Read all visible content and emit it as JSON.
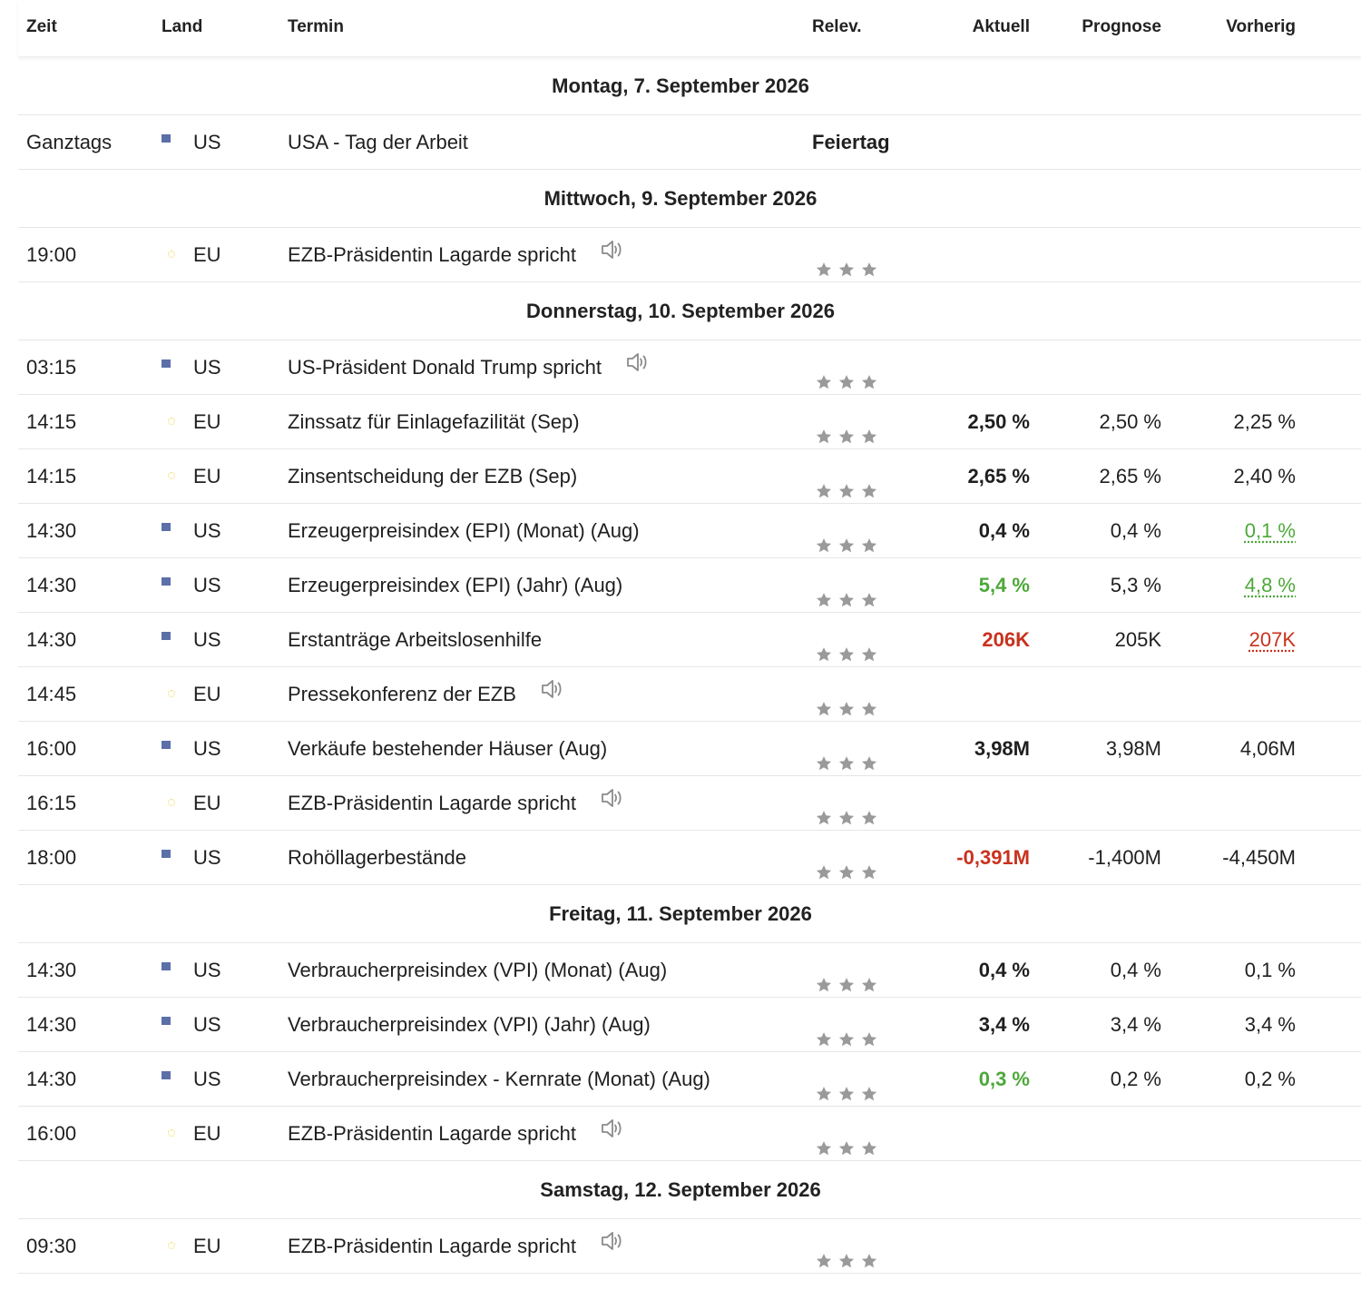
{
  "header": {
    "time": "Zeit",
    "country": "Land",
    "event": "Termin",
    "relevance": "Relev.",
    "actual": "Aktuell",
    "forecast": "Prognose",
    "previous": "Vorherig"
  },
  "icons": {
    "flag_us": "us-flag-icon",
    "flag_eu": "eu-flag-icon",
    "star": "star-icon",
    "speaker": "speaker-icon"
  },
  "colors": {
    "positive": "#4da83a",
    "negative": "#c8321e",
    "star": "#9a9a9a"
  },
  "sections": [
    {
      "date": "Montag, 7. September 2026",
      "events": [
        {
          "time": "Ganztags",
          "flag": "us",
          "country": "US",
          "event": "USA - Tag der Arbeit",
          "holiday": "Feiertag",
          "stars": 0,
          "sound": false,
          "actual": "",
          "actual_tone": "",
          "forecast": "",
          "previous": "",
          "previous_tone": ""
        }
      ]
    },
    {
      "date": "Mittwoch, 9. September 2026",
      "events": [
        {
          "time": "19:00",
          "flag": "eu",
          "country": "EU",
          "event": "EZB-Präsidentin Lagarde spricht",
          "holiday": "",
          "stars": 3,
          "sound": true,
          "actual": "",
          "actual_tone": "",
          "forecast": "",
          "previous": "",
          "previous_tone": ""
        }
      ]
    },
    {
      "date": "Donnerstag, 10. September 2026",
      "events": [
        {
          "time": "03:15",
          "flag": "us",
          "country": "US",
          "event": "US-Präsident Donald Trump spricht",
          "holiday": "",
          "stars": 3,
          "sound": true,
          "actual": "",
          "actual_tone": "",
          "forecast": "",
          "previous": "",
          "previous_tone": ""
        },
        {
          "time": "14:15",
          "flag": "eu",
          "country": "EU",
          "event": "Zinssatz für Einlagefazilität  (Sep)",
          "holiday": "",
          "stars": 3,
          "sound": false,
          "actual": "2,50 %",
          "actual_tone": "",
          "forecast": "2,50 %",
          "previous": "2,25 %",
          "previous_tone": ""
        },
        {
          "time": "14:15",
          "flag": "eu",
          "country": "EU",
          "event": "Zinsentscheidung der EZB  (Sep)",
          "holiday": "",
          "stars": 3,
          "sound": false,
          "actual": "2,65 %",
          "actual_tone": "",
          "forecast": "2,65 %",
          "previous": "2,40 %",
          "previous_tone": ""
        },
        {
          "time": "14:30",
          "flag": "us",
          "country": "US",
          "event": "Erzeugerpreisindex (EPI) (Monat) (Aug)",
          "holiday": "",
          "stars": 3,
          "sound": false,
          "actual": "0,4 %",
          "actual_tone": "",
          "forecast": "0,4 %",
          "previous": "0,1 %",
          "previous_tone": "green"
        },
        {
          "time": "14:30",
          "flag": "us",
          "country": "US",
          "event": "Erzeugerpreisindex (EPI) (Jahr) (Aug)",
          "holiday": "",
          "stars": 3,
          "sound": false,
          "actual": "5,4 %",
          "actual_tone": "green",
          "forecast": "5,3 %",
          "previous": "4,8 %",
          "previous_tone": "green"
        },
        {
          "time": "14:30",
          "flag": "us",
          "country": "US",
          "event": "Erstanträge Arbeitslosenhilfe",
          "holiday": "",
          "stars": 3,
          "sound": false,
          "actual": "206K",
          "actual_tone": "red",
          "forecast": "205K",
          "previous": "207K",
          "previous_tone": "red"
        },
        {
          "time": "14:45",
          "flag": "eu",
          "country": "EU",
          "event": "Pressekonferenz der EZB",
          "holiday": "",
          "stars": 3,
          "sound": true,
          "actual": "",
          "actual_tone": "",
          "forecast": "",
          "previous": "",
          "previous_tone": ""
        },
        {
          "time": "16:00",
          "flag": "us",
          "country": "US",
          "event": "Verkäufe bestehender Häuser  (Aug)",
          "holiday": "",
          "stars": 3,
          "sound": false,
          "actual": "3,98M",
          "actual_tone": "",
          "forecast": "3,98M",
          "previous": "4,06M",
          "previous_tone": ""
        },
        {
          "time": "16:15",
          "flag": "eu",
          "country": "EU",
          "event": "EZB-Präsidentin Lagarde spricht",
          "holiday": "",
          "stars": 3,
          "sound": true,
          "actual": "",
          "actual_tone": "",
          "forecast": "",
          "previous": "",
          "previous_tone": ""
        },
        {
          "time": "18:00",
          "flag": "us",
          "country": "US",
          "event": "Rohöllagerbestände",
          "holiday": "",
          "stars": 3,
          "sound": false,
          "actual": "-0,391M",
          "actual_tone": "red",
          "forecast": "-1,400M",
          "previous": "-4,450M",
          "previous_tone": ""
        }
      ]
    },
    {
      "date": "Freitag, 11. September 2026",
      "events": [
        {
          "time": "14:30",
          "flag": "us",
          "country": "US",
          "event": "Verbraucherpreisindex (VPI) (Monat) (Aug)",
          "holiday": "",
          "stars": 3,
          "sound": false,
          "actual": "0,4 %",
          "actual_tone": "",
          "forecast": "0,4 %",
          "previous": "0,1 %",
          "previous_tone": ""
        },
        {
          "time": "14:30",
          "flag": "us",
          "country": "US",
          "event": "Verbraucherpreisindex (VPI) (Jahr) (Aug)",
          "holiday": "",
          "stars": 3,
          "sound": false,
          "actual": "3,4 %",
          "actual_tone": "",
          "forecast": "3,4 %",
          "previous": "3,4 %",
          "previous_tone": ""
        },
        {
          "time": "14:30",
          "flag": "us",
          "country": "US",
          "event": "Verbraucherpreisindex - Kernrate (Monat) (Aug)",
          "holiday": "",
          "stars": 3,
          "sound": false,
          "actual": "0,3 %",
          "actual_tone": "green",
          "forecast": "0,2 %",
          "previous": "0,2 %",
          "previous_tone": ""
        },
        {
          "time": "16:00",
          "flag": "eu",
          "country": "EU",
          "event": "EZB-Präsidentin Lagarde spricht",
          "holiday": "",
          "stars": 3,
          "sound": true,
          "actual": "",
          "actual_tone": "",
          "forecast": "",
          "previous": "",
          "previous_tone": ""
        }
      ]
    },
    {
      "date": "Samstag, 12. September 2026",
      "events": [
        {
          "time": "09:30",
          "flag": "eu",
          "country": "EU",
          "event": "EZB-Präsidentin Lagarde spricht",
          "holiday": "",
          "stars": 3,
          "sound": true,
          "actual": "",
          "actual_tone": "",
          "forecast": "",
          "previous": "",
          "previous_tone": ""
        }
      ]
    }
  ]
}
